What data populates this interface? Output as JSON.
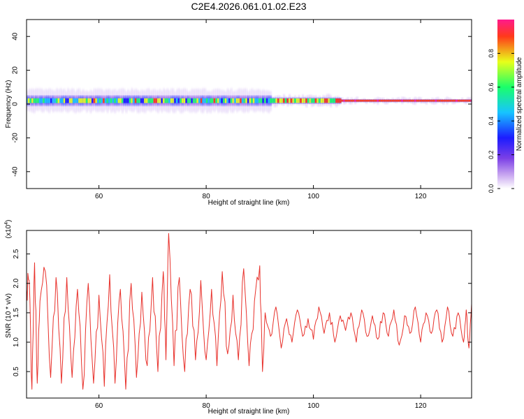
{
  "title": "C2E4.2026.061.01.02.E23",
  "colors": {
    "snr_line": "#e8312b",
    "colormap": [
      "#ffffff",
      "#c9a7f0",
      "#7b3fe6",
      "#1c1cff",
      "#17c4ff",
      "#1aff6a",
      "#e8ff1a",
      "#ff3a1a",
      "#ff1a8c"
    ]
  },
  "chart_data": [
    {
      "type": "heatmap",
      "title": "C2E4.2026.061.01.02.E23",
      "xlabel": "Height of straight line (km)",
      "ylabel": "Frequency (Hz)",
      "xlim": [
        46.5,
        129.5
      ],
      "ylim": [
        -50,
        50
      ],
      "x_ticks": [
        "60",
        "80",
        "100",
        "120"
      ],
      "y_ticks": [
        "40",
        "20",
        "0",
        "-20",
        "-40"
      ],
      "ridge": {
        "description": "Spectral energy concentrated around 0–3 Hz along the full height range; broader and patchier below ~92 km, narrow continuous high-amplitude band above ~105 km",
        "center_frequency_hz": 2,
        "spread_hz_low_heights": 4,
        "spread_hz_high_heights": 1
      },
      "colorbar": {
        "label": "Normalized spectral amplitude",
        "range": [
          0.0,
          1.0
        ],
        "ticks": [
          "0.0",
          "0.2",
          "0.4",
          "0.6",
          "0.8"
        ]
      },
      "grid": false
    },
    {
      "type": "line",
      "xlabel": "Height of straight line (km)",
      "ylabel": "SNR (10 * v/v)",
      "y_multiplier": "(x10",
      "y_multiplier_exp": "4",
      "xlim": [
        46.5,
        129.5
      ],
      "ylim": [
        0.05,
        2.9
      ],
      "x_ticks": [
        "60",
        "80",
        "100",
        "120"
      ],
      "y_ticks": [
        "0.5",
        "1.0",
        "1.5",
        "2.0",
        "2.5"
      ],
      "grid": false,
      "series": [
        {
          "x": [
            46.5,
            47,
            47.5,
            48,
            48.5,
            49,
            50,
            51,
            52,
            53,
            54,
            55,
            56,
            57,
            58,
            59,
            60,
            61,
            62,
            63,
            64,
            65,
            66,
            67,
            68,
            69,
            70,
            71,
            72,
            72.5,
            73,
            74,
            75,
            76,
            77,
            78,
            79,
            80,
            81,
            82,
            83,
            84,
            85,
            86,
            87,
            88,
            89,
            90,
            90.5,
            91,
            92,
            93,
            94,
            95,
            96,
            97,
            98,
            99,
            100,
            101,
            102,
            103,
            104,
            105,
            106,
            107,
            108,
            109,
            110,
            111,
            112,
            113,
            114,
            115,
            116,
            117,
            118,
            119,
            120,
            121,
            122,
            123,
            124,
            125,
            126,
            127,
            128,
            128.5,
            129,
            129.5
          ],
          "y": [
            1.9,
            2.05,
            0.2,
            2.35,
            0.3,
            1.7,
            2.2,
            0.4,
            2.1,
            0.3,
            2.1,
            0.4,
            1.9,
            0.2,
            2.0,
            0.3,
            1.8,
            0.25,
            2.15,
            0.3,
            1.9,
            0.2,
            2.0,
            0.4,
            1.85,
            0.6,
            2.1,
            0.5,
            2.2,
            0.7,
            2.85,
            0.6,
            2.1,
            0.5,
            1.9,
            0.7,
            2.05,
            0.7,
            1.9,
            0.6,
            2.2,
            0.8,
            1.8,
            0.7,
            2.25,
            0.6,
            1.7,
            2.3,
            0.5,
            1.5,
            1.1,
            1.6,
            0.9,
            1.4,
            1.0,
            1.55,
            1.1,
            1.4,
            1.05,
            1.6,
            1.15,
            1.5,
            1.0,
            1.45,
            1.2,
            1.5,
            1.0,
            1.55,
            1.1,
            1.45,
            1.05,
            1.5,
            1.1,
            1.55,
            0.95,
            1.45,
            1.15,
            1.6,
            1.0,
            1.5,
            1.15,
            1.55,
            1.0,
            1.6,
            1.1,
            1.5,
            1.0,
            1.55,
            0.9,
            1.65
          ]
        }
      ]
    }
  ]
}
